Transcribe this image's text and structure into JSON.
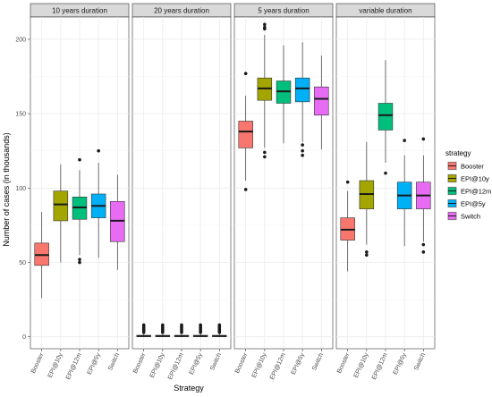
{
  "chart_data": {
    "type": "boxplot",
    "facet_by": "duration",
    "ylabel": "Number of cases (in thousands)",
    "xlabel": "Strategy",
    "ylim": [
      -8,
      215
    ],
    "y_ticks": [
      0,
      50,
      100,
      150,
      200
    ],
    "grid": true,
    "legend": {
      "title": "strategy",
      "position": "right"
    },
    "categories": [
      "Booster",
      "EPI@10y",
      "EPI@12m",
      "EPI@5y",
      "Switch"
    ],
    "colors": {
      "Booster": "#F8766D",
      "EPI@10y": "#A3A500",
      "EPI@12m": "#00BF7D",
      "EPI@5y": "#00B0F6",
      "Switch": "#E76BF3"
    },
    "facets": [
      {
        "title": "10 years duration",
        "boxes": [
          {
            "strategy": "Booster",
            "whisker_low": 26,
            "q1": 48,
            "median": 55,
            "q3": 63,
            "whisker_high": 84,
            "outliers": []
          },
          {
            "strategy": "EPI@10y",
            "whisker_low": 50,
            "q1": 78,
            "median": 89,
            "q3": 98,
            "whisker_high": 116,
            "outliers": []
          },
          {
            "strategy": "EPI@12m",
            "whisker_low": 55,
            "q1": 79,
            "median": 87,
            "q3": 94,
            "whisker_high": 112,
            "outliers": [
              50,
              52,
              119
            ]
          },
          {
            "strategy": "EPI@5y",
            "whisker_low": 53,
            "q1": 80,
            "median": 88,
            "q3": 96,
            "whisker_high": 117,
            "outliers": [
              125
            ]
          },
          {
            "strategy": "Switch",
            "whisker_low": 45,
            "q1": 64,
            "median": 78,
            "q3": 91,
            "whisker_high": 109,
            "outliers": []
          }
        ]
      },
      {
        "title": "20 years duration",
        "boxes": [
          {
            "strategy": "Booster",
            "whisker_low": 0,
            "q1": 0.2,
            "median": 0.5,
            "q3": 1,
            "whisker_high": 2,
            "outliers": [
              3,
              4,
              5,
              6,
              7,
              8
            ]
          },
          {
            "strategy": "EPI@10y",
            "whisker_low": 0,
            "q1": 0.2,
            "median": 0.5,
            "q3": 1,
            "whisker_high": 2,
            "outliers": [
              3,
              4,
              5,
              6,
              7,
              8
            ]
          },
          {
            "strategy": "EPI@12m",
            "whisker_low": 0,
            "q1": 0.2,
            "median": 0.5,
            "q3": 1,
            "whisker_high": 2,
            "outliers": [
              3,
              4,
              5,
              6,
              7,
              8
            ]
          },
          {
            "strategy": "EPI@5y",
            "whisker_low": 0,
            "q1": 0.2,
            "median": 0.5,
            "q3": 1,
            "whisker_high": 2,
            "outliers": [
              3,
              4,
              5,
              6,
              7,
              8
            ]
          },
          {
            "strategy": "Switch",
            "whisker_low": 0,
            "q1": 0.2,
            "median": 0.5,
            "q3": 1,
            "whisker_high": 2,
            "outliers": [
              3,
              4,
              5,
              6,
              7,
              8
            ]
          }
        ]
      },
      {
        "title": "5 years duration",
        "boxes": [
          {
            "strategy": "Booster",
            "whisker_low": 105,
            "q1": 127,
            "median": 138,
            "q3": 145,
            "whisker_high": 162,
            "outliers": [
              99,
              177
            ]
          },
          {
            "strategy": "EPI@10y",
            "whisker_low": 127,
            "q1": 159,
            "median": 167,
            "q3": 174,
            "whisker_high": 203,
            "outliers": [
              121,
              124,
              207,
              208,
              210
            ]
          },
          {
            "strategy": "EPI@12m",
            "whisker_low": 130,
            "q1": 157,
            "median": 165,
            "q3": 172,
            "whisker_high": 196,
            "outliers": []
          },
          {
            "strategy": "EPI@5y",
            "whisker_low": 131,
            "q1": 158,
            "median": 167,
            "q3": 174,
            "whisker_high": 198,
            "outliers": [
              122,
              125,
              129
            ]
          },
          {
            "strategy": "Switch",
            "whisker_low": 126,
            "q1": 149,
            "median": 160,
            "q3": 168,
            "whisker_high": 189,
            "outliers": []
          }
        ]
      },
      {
        "title": "variable duration",
        "boxes": [
          {
            "strategy": "Booster",
            "whisker_low": 44,
            "q1": 65,
            "median": 72,
            "q3": 80,
            "whisker_high": 98,
            "outliers": [
              104
            ]
          },
          {
            "strategy": "EPI@10y",
            "whisker_low": 62,
            "q1": 86,
            "median": 96,
            "q3": 105,
            "whisker_high": 131,
            "outliers": [
              55,
              57
            ]
          },
          {
            "strategy": "EPI@12m",
            "whisker_low": 117,
            "q1": 139,
            "median": 149,
            "q3": 157,
            "whisker_high": 186,
            "outliers": [
              110
            ]
          },
          {
            "strategy": "EPI@5y",
            "whisker_low": 61,
            "q1": 86,
            "median": 95,
            "q3": 104,
            "whisker_high": 122,
            "outliers": [
              132
            ]
          },
          {
            "strategy": "Switch",
            "whisker_low": 64,
            "q1": 86,
            "median": 95,
            "q3": 104,
            "whisker_high": 122,
            "outliers": [
              57,
              62,
              133
            ]
          }
        ]
      }
    ]
  }
}
